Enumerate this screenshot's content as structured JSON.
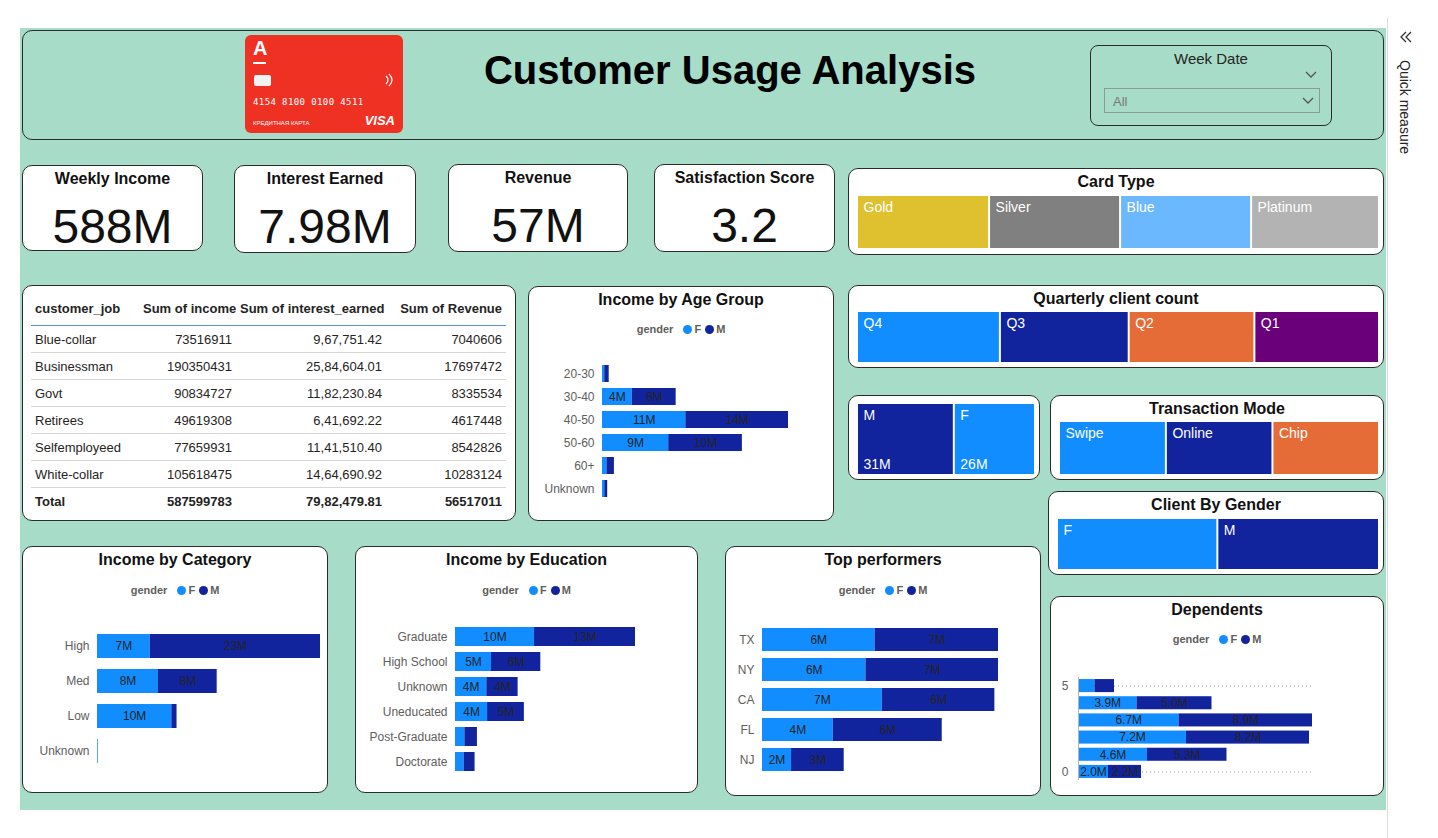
{
  "header": {
    "title": "Customer Usage Analysis",
    "card": {
      "logo": "A",
      "number": "4154 8100 0100 4511",
      "caption": "КРЕДИТНАЯ КАРТА",
      "brand": "VISA"
    },
    "slicer": {
      "label": "Week Date",
      "value": "All"
    }
  },
  "side_pane": {
    "label": "Quick measure"
  },
  "kpis": [
    {
      "title": "Weekly Income",
      "value": "588M"
    },
    {
      "title": "Interest Earned",
      "value": "7.98M"
    },
    {
      "title": "Revenue",
      "value": "57M"
    },
    {
      "title": "Satisfaction Score",
      "value": "3.2"
    }
  ],
  "table": {
    "columns": [
      "customer_job",
      "Sum of income",
      "Sum of interest_earned",
      "Sum of Revenue"
    ],
    "rows": [
      [
        "Blue-collar",
        "73516911",
        "9,67,751.42",
        "7040606"
      ],
      [
        "Businessman",
        "190350431",
        "25,84,604.01",
        "17697472"
      ],
      [
        "Govt",
        "90834727",
        "11,82,230.84",
        "8335534"
      ],
      [
        "Retirees",
        "49619308",
        "6,41,692.22",
        "4617448"
      ],
      [
        "Selfemployeed",
        "77659931",
        "11,41,510.40",
        "8542826"
      ],
      [
        "White-collar",
        "105618475",
        "14,64,690.92",
        "10283124"
      ]
    ],
    "total": [
      "Total",
      "587599783",
      "79,82,479.81",
      "56517011"
    ]
  },
  "chart_data": [
    {
      "type": "treemap",
      "title": "Card Type",
      "categories": [
        "Gold",
        "Silver",
        "Blue",
        "Platinum"
      ],
      "values": [
        25.3,
        25.1,
        25.1,
        24.5
      ],
      "colors": [
        "#DFC02F",
        "#808080",
        "#6CB8FF",
        "#B3B3B3"
      ]
    },
    {
      "type": "treemap",
      "title": "Quarterly client count",
      "categories": [
        "Q4",
        "Q3",
        "Q2",
        "Q1"
      ],
      "values": [
        27.4,
        24.7,
        24.1,
        23.9
      ],
      "colors": [
        "#118DFF",
        "#12239E",
        "#E66C37",
        "#6B007B"
      ]
    },
    {
      "type": "treemap",
      "categories": [
        "M",
        "F"
      ],
      "values": [
        31,
        26
      ],
      "value_labels": [
        "31M",
        "26M"
      ],
      "data_labels": true,
      "colors": [
        "#12239E",
        "#118DFF"
      ]
    },
    {
      "type": "treemap",
      "title": "Transaction Mode",
      "categories": [
        "Swipe",
        "Online",
        "Chip"
      ],
      "values": [
        33.4,
        33.3,
        33.3
      ],
      "colors": [
        "#118DFF",
        "#12239E",
        "#E66C37"
      ]
    },
    {
      "type": "treemap",
      "title": "Client By Gender",
      "categories": [
        "F",
        "M"
      ],
      "values": [
        49.8,
        50.2
      ],
      "colors": [
        "#118DFF",
        "#12239E"
      ]
    },
    {
      "type": "bar",
      "title": "Income by Age Group",
      "orientation": "horizontal",
      "stacked": true,
      "data_labels": true,
      "tick_labels": "y",
      "legend": "top",
      "legend_title": "gender",
      "categories": [
        "20-30",
        "30-40",
        "40-50",
        "50-60",
        "60+",
        "Unknown"
      ],
      "series": [
        {
          "name": "F",
          "color": "#118DFF",
          "values": [
            0.3,
            4.0,
            11.2,
            8.9,
            0.6,
            0.3
          ],
          "value_labels": [
            null,
            "4M",
            "11M",
            "9M",
            null,
            null
          ]
        },
        {
          "name": "M",
          "color": "#12239E",
          "values": [
            0.6,
            5.9,
            13.8,
            9.9,
            1.0,
            0.4
          ],
          "value_labels": [
            null,
            "6M",
            "14M",
            "10M",
            null,
            null
          ]
        }
      ]
    },
    {
      "type": "bar",
      "title": "Income by Category",
      "orientation": "horizontal",
      "stacked": true,
      "data_labels": true,
      "tick_labels": "y",
      "legend": "top",
      "legend_title": "gender",
      "categories": [
        "High",
        "Med",
        "Low",
        "Unknown"
      ],
      "series": [
        {
          "name": "F",
          "color": "#118DFF",
          "values": [
            7.1,
            8.2,
            10.0,
            0.1
          ],
          "value_labels": [
            "7M",
            "8M",
            "10M",
            null
          ]
        },
        {
          "name": "M",
          "color": "#12239E",
          "values": [
            22.9,
            7.9,
            0.7,
            0
          ],
          "value_labels": [
            "23M",
            "8M",
            null,
            null
          ]
        }
      ]
    },
    {
      "type": "bar",
      "title": "Income by Education",
      "orientation": "horizontal",
      "stacked": true,
      "data_labels": true,
      "tick_labels": "y",
      "legend": "top",
      "legend_title": "gender",
      "categories": [
        "Graduate",
        "High School",
        "Unknown",
        "Uneducated",
        "Post-Graduate",
        "Doctorate"
      ],
      "series": [
        {
          "name": "F",
          "color": "#118DFF",
          "values": [
            10.1,
            4.6,
            4.0,
            4.1,
            1.2,
            1.1
          ],
          "value_labels": [
            "10M",
            "5M",
            "4M",
            "4M",
            null,
            null
          ]
        },
        {
          "name": "M",
          "color": "#12239E",
          "values": [
            12.9,
            6.3,
            4.0,
            4.7,
            1.6,
            1.4
          ],
          "value_labels": [
            "13M",
            "6M",
            "4M",
            "5M",
            null,
            null
          ]
        }
      ]
    },
    {
      "type": "bar",
      "title": "Top performers",
      "orientation": "horizontal",
      "stacked": true,
      "data_labels": true,
      "tick_labels": "y",
      "legend": "top",
      "legend_title": "gender",
      "categories": [
        "TX",
        "NY",
        "CA",
        "FL",
        "NJ"
      ],
      "series": [
        {
          "name": "F",
          "color": "#118DFF",
          "values": [
            6.2,
            5.7,
            6.6,
            3.9,
            1.6
          ],
          "value_labels": [
            "6M",
            "6M",
            "7M",
            "4M",
            "2M"
          ]
        },
        {
          "name": "M",
          "color": "#12239E",
          "values": [
            6.8,
            7.3,
            6.2,
            6.0,
            2.9
          ],
          "value_labels": [
            "7M",
            "7M",
            "6M",
            "6M",
            "3M"
          ]
        }
      ]
    },
    {
      "type": "bar",
      "title": "Dependents",
      "orientation": "horizontal",
      "stacked": true,
      "data_labels": true,
      "tick_labels": "y",
      "legend": "top",
      "legend_title": "gender",
      "grid": true,
      "y": [
        0,
        1,
        2,
        3,
        4,
        5
      ],
      "ylim": [
        -0.5,
        5.5
      ],
      "yticks": [
        0,
        5
      ],
      "series": [
        {
          "name": "F",
          "color": "#118DFF",
          "values": [
            2.0,
            4.6,
            7.2,
            6.7,
            3.9,
            1.1
          ],
          "value_labels": [
            "2.0M",
            "4.6M",
            "7.2M",
            "6.7M",
            "3.9M",
            null
          ]
        },
        {
          "name": "M",
          "color": "#12239E",
          "values": [
            2.2,
            5.3,
            8.2,
            8.9,
            5.0,
            1.3
          ],
          "value_labels": [
            "2.2M",
            "5.3M",
            "8.2M",
            "8.9M",
            "5.0M",
            null
          ]
        }
      ]
    }
  ]
}
